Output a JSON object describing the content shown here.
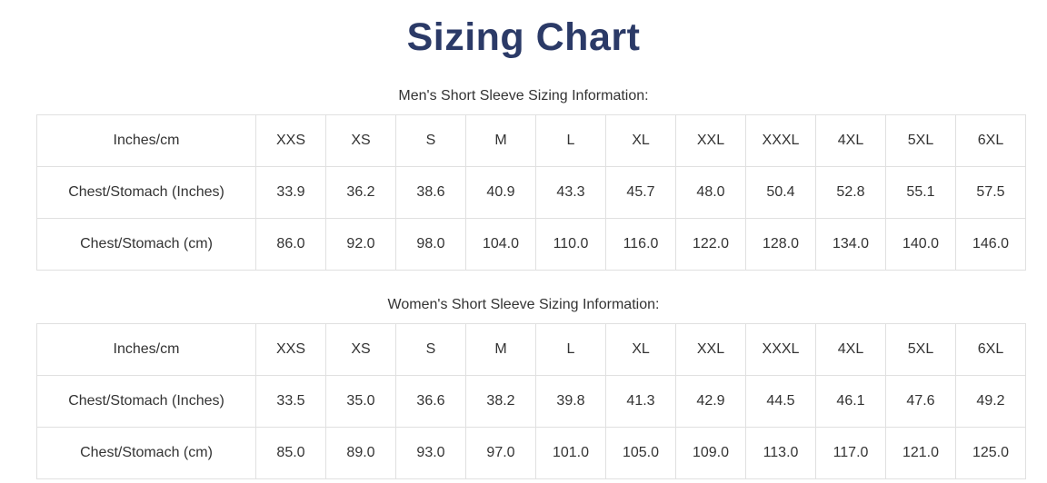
{
  "page": {
    "title": "Sizing Chart"
  },
  "colors": {
    "title_text": "#2b3a67",
    "body_text": "#333333",
    "table_border": "#e0e0e0",
    "background": "#ffffff"
  },
  "sections": [
    {
      "heading": "Men's Short Sleeve Sizing Information:",
      "table": {
        "header": [
          "Inches/cm",
          "XXS",
          "XS",
          "S",
          "M",
          "L",
          "XL",
          "XXL",
          "XXXL",
          "4XL",
          "5XL",
          "6XL"
        ],
        "rows": [
          {
            "label": "Chest/Stomach (Inches)",
            "values": [
              "33.9",
              "36.2",
              "38.6",
              "40.9",
              "43.3",
              "45.7",
              "48.0",
              "50.4",
              "52.8",
              "55.1",
              "57.5"
            ]
          },
          {
            "label": "Chest/Stomach (cm)",
            "values": [
              "86.0",
              "92.0",
              "98.0",
              "104.0",
              "110.0",
              "116.0",
              "122.0",
              "128.0",
              "134.0",
              "140.0",
              "146.0"
            ]
          }
        ]
      }
    },
    {
      "heading": "Women's Short Sleeve Sizing Information:",
      "table": {
        "header": [
          "Inches/cm",
          "XXS",
          "XS",
          "S",
          "M",
          "L",
          "XL",
          "XXL",
          "XXXL",
          "4XL",
          "5XL",
          "6XL"
        ],
        "rows": [
          {
            "label": "Chest/Stomach (Inches)",
            "values": [
              "33.5",
              "35.0",
              "36.6",
              "38.2",
              "39.8",
              "41.3",
              "42.9",
              "44.5",
              "46.1",
              "47.6",
              "49.2"
            ]
          },
          {
            "label": "Chest/Stomach (cm)",
            "values": [
              "85.0",
              "89.0",
              "93.0",
              "97.0",
              "101.0",
              "105.0",
              "109.0",
              "113.0",
              "117.0",
              "121.0",
              "125.0"
            ]
          }
        ]
      }
    }
  ]
}
